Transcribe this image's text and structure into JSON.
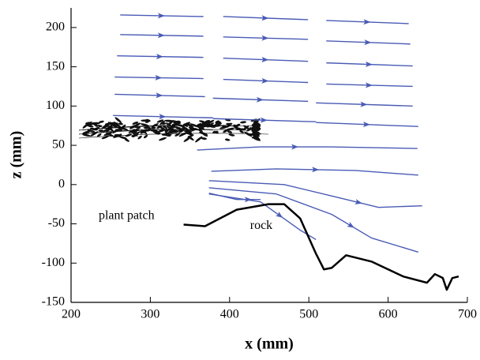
{
  "chart_data": {
    "type": "line",
    "xlabel": "x (mm)",
    "ylabel": "z (mm)",
    "annotations": [
      {
        "text": "plant patch",
        "x": 270,
        "y": -40
      },
      {
        "text": "rock",
        "x": 440,
        "y": -53
      }
    ],
    "xlim": [
      200,
      700
    ],
    "ylim": [
      -150,
      225
    ],
    "xticks": [
      200,
      300,
      400,
      500,
      600,
      700
    ],
    "yticks": [
      -150,
      -100,
      -50,
      0,
      50,
      100,
      150,
      200
    ],
    "series": [
      {
        "color": "#4a5bb5",
        "x": [
          262,
          367,
          null,
          392,
          499,
          null,
          522,
          626
        ],
        "values": [
          216,
          214,
          null,
          214,
          210,
          null,
          209,
          205
        ]
      },
      {
        "color": "#4a5bb5",
        "x": [
          262,
          367,
          null,
          392,
          499,
          null,
          522,
          628
        ],
        "values": [
          191,
          189,
          null,
          188,
          185,
          null,
          183,
          179
        ]
      },
      {
        "color": "#4a5bb5",
        "x": [
          258,
          367,
          null,
          392,
          499,
          null,
          522,
          631
        ],
        "values": [
          164,
          162,
          null,
          161,
          157,
          null,
          155,
          151
        ]
      },
      {
        "color": "#4a5bb5",
        "x": [
          255,
          367,
          null,
          392,
          499,
          null,
          522,
          631
        ],
        "values": [
          137,
          135,
          null,
          134,
          130,
          null,
          128,
          125
        ]
      },
      {
        "color": "#4a5bb5",
        "x": [
          255,
          369,
          null,
          379,
          499,
          null,
          509,
          631
        ],
        "values": [
          115,
          112,
          null,
          110,
          106,
          null,
          104,
          100
        ]
      },
      {
        "color": "#4a5bb5",
        "x": [
          253,
          379,
          null,
          379,
          509,
          null,
          509,
          638
        ],
        "values": [
          88,
          85,
          null,
          84,
          80,
          null,
          79,
          74
        ]
      },
      {
        "color": "#4a5bb5",
        "x": [
          359,
          438,
          528,
          637
        ],
        "values": [
          44,
          48,
          48,
          46
        ]
      },
      {
        "color": "#4a5bb5",
        "x": [
          377,
          459,
          559,
          638
        ],
        "values": [
          17,
          20,
          18,
          12
        ]
      },
      {
        "color": "#4a5bb5",
        "x": [
          374,
          469,
          539,
          588,
          643
        ],
        "values": [
          5,
          0,
          -17,
          -29,
          -27
        ]
      },
      {
        "color": "#4a5bb5",
        "x": [
          374,
          459,
          529,
          579,
          638
        ],
        "values": [
          -4,
          -12,
          -38,
          -68,
          -86
        ]
      },
      {
        "color": "#4a5bb5",
        "x": [
          374,
          439,
          489,
          509
        ],
        "values": [
          -12,
          -22,
          -58,
          -70
        ]
      },
      {
        "color": "#4a5bb5",
        "x": [
          374,
          409,
          439
        ],
        "values": [
          -11,
          -19,
          -19
        ]
      },
      {
        "color": "#000000",
        "x": [
          342,
          369,
          409,
          449,
          469,
          489,
          509,
          519,
          529,
          547,
          579,
          619,
          649,
          659,
          669,
          674,
          681,
          689
        ],
        "values": [
          -51,
          -53,
          -32,
          -25,
          -25,
          -43,
          -88,
          -108,
          -106,
          -90,
          -98,
          -117,
          -125,
          -114,
          -119,
          -134,
          -119,
          -117
        ]
      }
    ]
  }
}
